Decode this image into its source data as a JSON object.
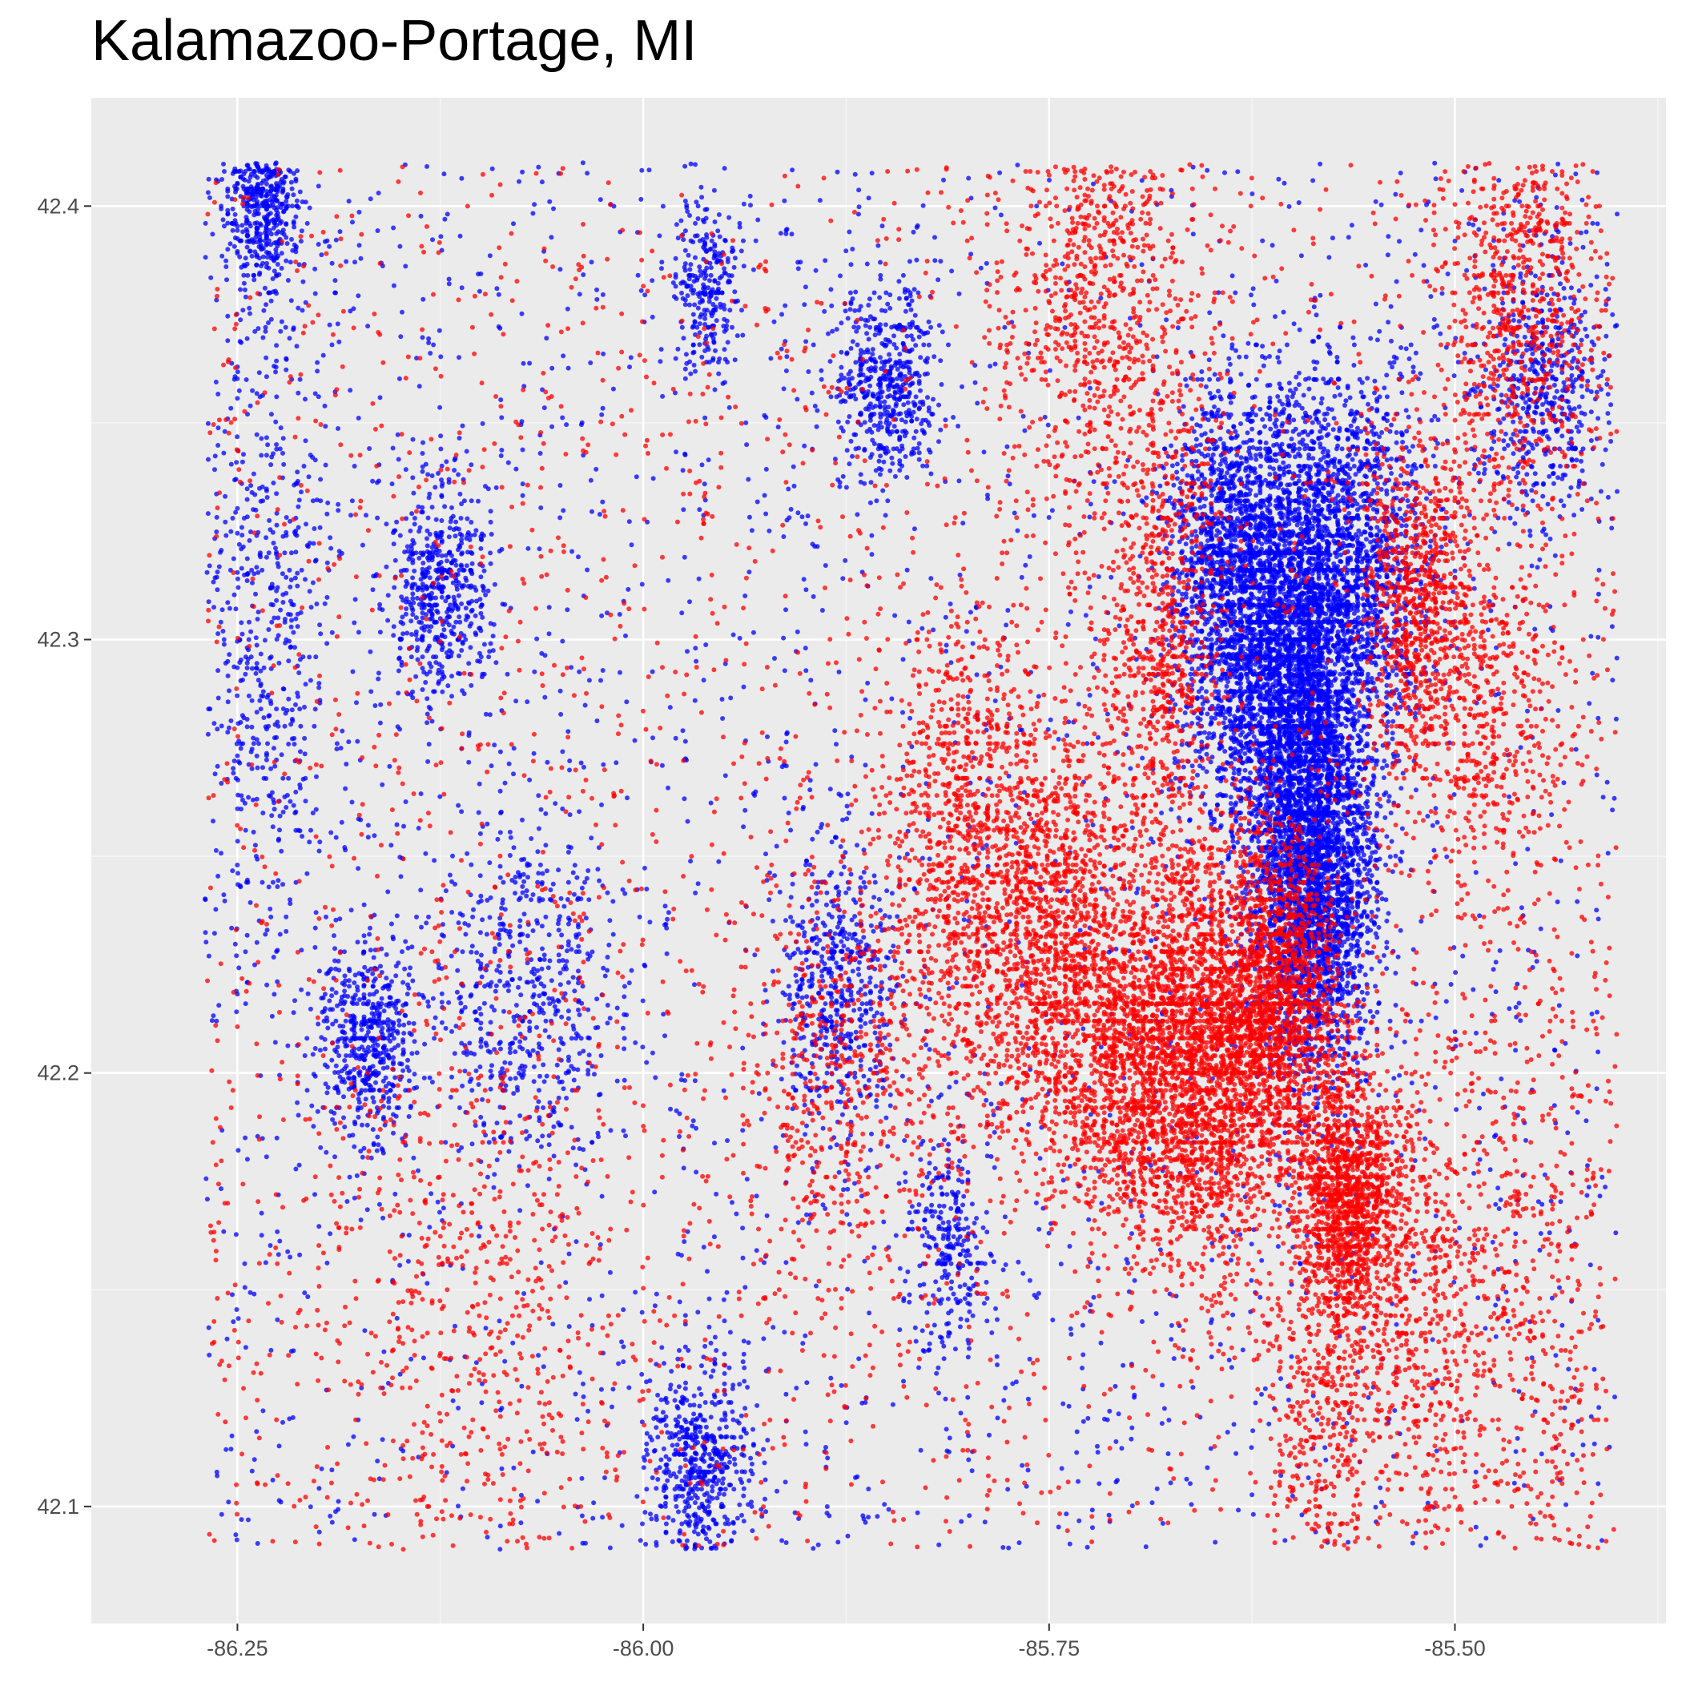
{
  "chart_data": {
    "type": "scatter",
    "title": "Kalamazoo-Portage, MI",
    "xlabel": "",
    "ylabel": "",
    "xlim": [
      -86.34,
      -85.37
    ],
    "ylim": [
      42.073,
      42.425
    ],
    "x_ticks": [
      {
        "value": -86.25,
        "label": "-86.25"
      },
      {
        "value": -86.0,
        "label": "-86.00"
      },
      {
        "value": -85.75,
        "label": "-85.75"
      },
      {
        "value": -85.5,
        "label": "-85.50"
      }
    ],
    "y_ticks": [
      {
        "value": 42.1,
        "label": "42.1"
      },
      {
        "value": 42.2,
        "label": "42.2"
      },
      {
        "value": 42.3,
        "label": "42.3"
      },
      {
        "value": 42.4,
        "label": "42.4"
      }
    ],
    "grid": true,
    "legend": "none",
    "point_extent": {
      "x": [
        -86.27,
        -85.4
      ],
      "y": [
        42.09,
        42.41
      ]
    },
    "colors": {
      "panel_background": "#ebebeb",
      "grid_major": "#ffffff",
      "grid_minor": "#f5f5f5",
      "axis_ticks": "#333333",
      "series_a": "#0000ff",
      "series_b": "#ff0000"
    },
    "series": [
      {
        "color": "#0000ff",
        "clusters": [
          {
            "x": -85.615,
            "y": 42.3,
            "spread": [
              0.025,
              0.025
            ],
            "weight": 9
          },
          {
            "x": -85.585,
            "y": 42.275,
            "spread": [
              0.02,
              0.03
            ],
            "weight": 7
          },
          {
            "x": -85.6,
            "y": 42.255,
            "spread": [
              0.015,
              0.03
            ],
            "weight": 6
          },
          {
            "x": -85.56,
            "y": 42.32,
            "spread": [
              0.025,
              0.02
            ],
            "weight": 5
          },
          {
            "x": -85.64,
            "y": 42.32,
            "spread": [
              0.02,
              0.02
            ],
            "weight": 4
          },
          {
            "x": -85.58,
            "y": 42.24,
            "spread": [
              0.015,
              0.02
            ],
            "weight": 4
          },
          {
            "x": -86.235,
            "y": 42.4,
            "spread": [
              0.012,
              0.01
            ],
            "weight": 2
          },
          {
            "x": -86.125,
            "y": 42.312,
            "spread": [
              0.015,
              0.012
            ],
            "weight": 2
          },
          {
            "x": -86.17,
            "y": 42.207,
            "spread": [
              0.015,
              0.012
            ],
            "weight": 2
          },
          {
            "x": -85.965,
            "y": 42.11,
            "spread": [
              0.015,
              0.012
            ],
            "weight": 2
          },
          {
            "x": -85.88,
            "y": 42.22,
            "spread": [
              0.018,
              0.018
            ],
            "weight": 2
          },
          {
            "x": -85.85,
            "y": 42.36,
            "spread": [
              0.015,
              0.012
            ],
            "weight": 2
          },
          {
            "x": -85.81,
            "y": 42.16,
            "spread": [
              0.012,
              0.012
            ],
            "weight": 1
          },
          {
            "x": -85.96,
            "y": 42.38,
            "spread": [
              0.01,
              0.01
            ],
            "weight": 1
          },
          {
            "x": -85.445,
            "y": 42.36,
            "spread": [
              0.02,
              0.015
            ],
            "weight": 2
          },
          {
            "x": -86.07,
            "y": 42.22,
            "spread": [
              0.03,
              0.02
            ],
            "weight": 2
          },
          {
            "x": -86.23,
            "y": 42.3,
            "spread": [
              0.02,
              0.04
            ],
            "weight": 2
          }
        ]
      },
      {
        "color": "#ff0000",
        "clusters": [
          {
            "x": -85.655,
            "y": 42.205,
            "spread": [
              0.025,
              0.025
            ],
            "weight": 8
          },
          {
            "x": -85.61,
            "y": 42.215,
            "spread": [
              0.02,
              0.02
            ],
            "weight": 6
          },
          {
            "x": -85.565,
            "y": 42.17,
            "spread": [
              0.015,
              0.015
            ],
            "weight": 5
          },
          {
            "x": -85.745,
            "y": 42.23,
            "spread": [
              0.025,
              0.025
            ],
            "weight": 5
          },
          {
            "x": -85.7,
            "y": 42.2,
            "spread": [
              0.025,
              0.02
            ],
            "weight": 4
          },
          {
            "x": -85.8,
            "y": 42.25,
            "spread": [
              0.025,
              0.03
            ],
            "weight": 4
          },
          {
            "x": -85.68,
            "y": 42.3,
            "spread": [
              0.02,
              0.03
            ],
            "weight": 3
          },
          {
            "x": -85.46,
            "y": 42.38,
            "spread": [
              0.025,
              0.025
            ],
            "weight": 3
          },
          {
            "x": -85.52,
            "y": 42.31,
            "spread": [
              0.02,
              0.02
            ],
            "weight": 3
          },
          {
            "x": -85.72,
            "y": 42.38,
            "spread": [
              0.03,
              0.025
            ],
            "weight": 3
          },
          {
            "x": -85.48,
            "y": 42.28,
            "spread": [
              0.03,
              0.02
            ],
            "weight": 2
          },
          {
            "x": -85.52,
            "y": 42.15,
            "spread": [
              0.02,
              0.03
            ],
            "weight": 2
          },
          {
            "x": -85.58,
            "y": 42.12,
            "spread": [
              0.02,
              0.03
            ],
            "weight": 2
          },
          {
            "x": -85.88,
            "y": 42.2,
            "spread": [
              0.03,
              0.03
            ],
            "weight": 2
          },
          {
            "x": -86.1,
            "y": 42.15,
            "spread": [
              0.05,
              0.04
            ],
            "weight": 2
          },
          {
            "x": -85.45,
            "y": 42.15,
            "spread": [
              0.03,
              0.05
            ],
            "weight": 2
          }
        ]
      }
    ]
  }
}
